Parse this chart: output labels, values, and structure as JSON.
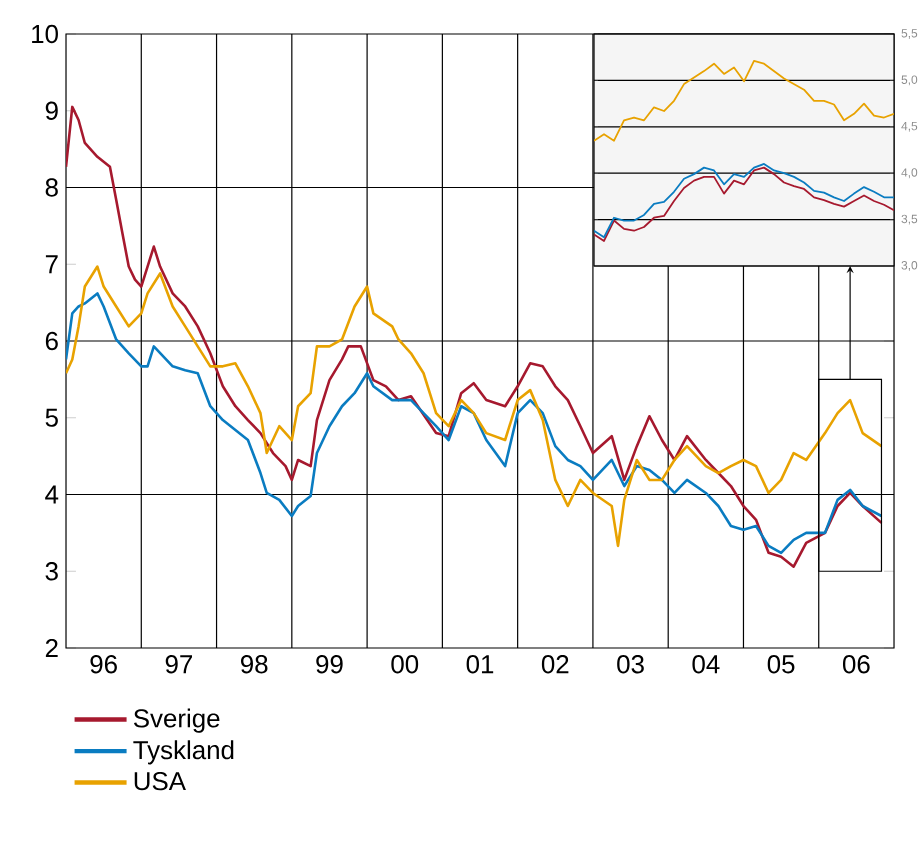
{
  "chart_data": [
    {
      "type": "line",
      "xlim": [
        "1996-01",
        "2007-01"
      ],
      "ylim": [
        2,
        10
      ],
      "yticks": [
        2,
        3,
        4,
        5,
        6,
        7,
        8,
        9,
        10
      ],
      "xticks": [
        {
          "value": "1996-07",
          "label": "96"
        },
        {
          "value": "1997-07",
          "label": "97"
        },
        {
          "value": "1998-07",
          "label": "98"
        },
        {
          "value": "1999-07",
          "label": "99"
        },
        {
          "value": "2000-07",
          "label": "00"
        },
        {
          "value": "2001-07",
          "label": "01"
        },
        {
          "value": "2002-07",
          "label": "02"
        },
        {
          "value": "2003-07",
          "label": "03"
        },
        {
          "value": "2004-07",
          "label": "04"
        },
        {
          "value": "2005-07",
          "label": "05"
        },
        {
          "value": "2006-07",
          "label": "06"
        }
      ],
      "legend": "bottom",
      "ref_lines": [
        {
          "axis": "x",
          "value": "1997-01"
        },
        {
          "axis": "x",
          "value": "1998-01"
        },
        {
          "axis": "x",
          "value": "1999-01"
        },
        {
          "axis": "x",
          "value": "2000-01"
        },
        {
          "axis": "x",
          "value": "2001-01"
        },
        {
          "axis": "x",
          "value": "2002-01"
        },
        {
          "axis": "x",
          "value": "2003-01"
        },
        {
          "axis": "x",
          "value": "2004-01"
        },
        {
          "axis": "x",
          "value": "2005-01"
        },
        {
          "axis": "x",
          "value": "2006-01"
        },
        {
          "axis": "y",
          "value": 4
        },
        {
          "axis": "y",
          "value": 6
        },
        {
          "axis": "y",
          "value": 8
        }
      ],
      "series": [
        {
          "name": "Sverige",
          "color": "#a6192e",
          "x": [
            "1996-01",
            "1996-02",
            "1996-03",
            "1996-04",
            "1996-06",
            "1996-08",
            "1996-09",
            "1996-10",
            "1996-11",
            "1996-12",
            "1997-01",
            "1997-03",
            "1997-04",
            "1997-06",
            "1997-08",
            "1997-10",
            "1997-12",
            "1998-02",
            "1998-04",
            "1998-06",
            "1998-08",
            "1998-10",
            "1998-12",
            "1999-01",
            "1999-02",
            "1999-04",
            "1999-05",
            "1999-07",
            "1999-09",
            "1999-10",
            "1999-12",
            "2000-02",
            "2000-04",
            "2000-06",
            "2000-08",
            "2000-12",
            "2001-02",
            "2001-04",
            "2001-06",
            "2001-08",
            "2001-11",
            "2002-01",
            "2002-03",
            "2002-05",
            "2002-07",
            "2002-09",
            "2002-11",
            "2003-01",
            "2003-04",
            "2003-06",
            "2003-08",
            "2003-10",
            "2003-12",
            "2004-02",
            "2004-04",
            "2004-07",
            "2004-09",
            "2004-11",
            "2005-01",
            "2005-03",
            "2005-05",
            "2005-07",
            "2005-09",
            "2005-11",
            "2006-02",
            "2006-04",
            "2006-06",
            "2006-08",
            "2006-11"
          ],
          "values": [
            8.27,
            9.05,
            8.88,
            8.58,
            8.4,
            8.27,
            7.84,
            7.4,
            6.97,
            6.8,
            6.71,
            7.23,
            6.97,
            6.62,
            6.45,
            6.19,
            5.84,
            5.41,
            5.15,
            4.97,
            4.8,
            4.54,
            4.37,
            4.19,
            4.45,
            4.37,
            4.97,
            5.49,
            5.76,
            5.93,
            5.93,
            5.49,
            5.41,
            5.23,
            5.28,
            4.8,
            4.76,
            5.32,
            5.45,
            5.23,
            5.15,
            5.41,
            5.71,
            5.67,
            5.41,
            5.23,
            4.89,
            4.54,
            4.76,
            4.19,
            4.63,
            5.02,
            4.71,
            4.45,
            4.76,
            4.45,
            4.28,
            4.11,
            3.85,
            3.67,
            3.24,
            3.19,
            3.06,
            3.37,
            3.5,
            3.85,
            4.02,
            3.85,
            3.63
          ]
        },
        {
          "name": "Tyskland",
          "color": "#0a7cc1",
          "x": [
            "1996-01",
            "1996-02",
            "1996-03",
            "1996-04",
            "1996-06",
            "1996-07",
            "1996-09",
            "1996-11",
            "1997-01",
            "1997-02",
            "1997-03",
            "1997-06",
            "1997-08",
            "1997-10",
            "1997-12",
            "1998-02",
            "1998-04",
            "1998-06",
            "1998-08",
            "1998-09",
            "1998-11",
            "1999-01",
            "1999-02",
            "1999-04",
            "1999-05",
            "1999-07",
            "1999-09",
            "1999-11",
            "2000-01",
            "2000-02",
            "2000-05",
            "2000-06",
            "2000-08",
            "2000-12",
            "2001-02",
            "2001-04",
            "2001-06",
            "2001-08",
            "2001-11",
            "2002-01",
            "2002-03",
            "2002-05",
            "2002-07",
            "2002-09",
            "2002-11",
            "2003-01",
            "2003-04",
            "2003-06",
            "2003-08",
            "2003-10",
            "2003-12",
            "2004-02",
            "2004-04",
            "2004-07",
            "2004-09",
            "2004-11",
            "2005-01",
            "2005-03",
            "2005-05",
            "2005-07",
            "2005-09",
            "2005-11",
            "2006-02",
            "2006-04",
            "2006-06",
            "2006-08",
            "2006-11"
          ],
          "values": [
            5.76,
            6.36,
            6.45,
            6.49,
            6.62,
            6.45,
            6.02,
            5.84,
            5.67,
            5.67,
            5.93,
            5.67,
            5.62,
            5.58,
            5.15,
            4.97,
            4.84,
            4.71,
            4.28,
            4.02,
            3.93,
            3.72,
            3.85,
            3.98,
            4.54,
            4.89,
            5.15,
            5.32,
            5.58,
            5.41,
            5.23,
            5.23,
            5.23,
            4.89,
            4.71,
            5.15,
            5.06,
            4.71,
            4.37,
            5.06,
            5.23,
            5.06,
            4.63,
            4.45,
            4.37,
            4.19,
            4.45,
            4.11,
            4.37,
            4.32,
            4.19,
            4.02,
            4.19,
            4.02,
            3.85,
            3.59,
            3.54,
            3.59,
            3.33,
            3.24,
            3.41,
            3.5,
            3.5,
            3.93,
            4.06,
            3.85,
            3.72
          ]
        },
        {
          "name": "USA",
          "color": "#e8a200",
          "x": [
            "1996-01",
            "1996-02",
            "1996-03",
            "1996-04",
            "1996-06",
            "1996-07",
            "1996-09",
            "1996-11",
            "1997-01",
            "1997-02",
            "1997-04",
            "1997-06",
            "1997-08",
            "1997-10",
            "1997-12",
            "1998-02",
            "1998-04",
            "1998-06",
            "1998-08",
            "1998-09",
            "1998-11",
            "1999-01",
            "1999-02",
            "1999-04",
            "1999-05",
            "1999-07",
            "1999-09",
            "1999-11",
            "2000-01",
            "2000-02",
            "2000-05",
            "2000-06",
            "2000-08",
            "2000-10",
            "2000-12",
            "2001-02",
            "2001-04",
            "2001-06",
            "2001-08",
            "2001-11",
            "2002-01",
            "2002-03",
            "2002-05",
            "2002-07",
            "2002-09",
            "2002-11",
            "2003-01",
            "2003-04",
            "2003-05",
            "2003-06",
            "2003-08",
            "2003-10",
            "2003-12",
            "2004-02",
            "2004-04",
            "2004-07",
            "2004-09",
            "2004-11",
            "2005-01",
            "2005-03",
            "2005-05",
            "2005-07",
            "2005-09",
            "2005-11",
            "2006-02",
            "2006-04",
            "2006-06",
            "2006-08",
            "2006-11"
          ],
          "values": [
            5.58,
            5.76,
            6.19,
            6.71,
            6.97,
            6.71,
            6.45,
            6.19,
            6.36,
            6.62,
            6.88,
            6.45,
            6.19,
            5.93,
            5.67,
            5.67,
            5.71,
            5.41,
            5.06,
            4.54,
            4.89,
            4.71,
            5.15,
            5.32,
            5.93,
            5.93,
            6.02,
            6.45,
            6.71,
            6.36,
            6.19,
            6.02,
            5.84,
            5.58,
            5.06,
            4.89,
            5.23,
            5.06,
            4.8,
            4.71,
            5.23,
            5.36,
            4.97,
            4.19,
            3.85,
            4.19,
            4.02,
            3.85,
            3.33,
            3.93,
            4.45,
            4.19,
            4.19,
            4.45,
            4.63,
            4.37,
            4.28,
            4.37,
            4.45,
            4.37,
            4.02,
            4.19,
            4.54,
            4.45,
            4.8,
            5.06,
            5.23,
            4.8,
            4.63
          ]
        }
      ]
    },
    {
      "type": "line",
      "ylim": [
        3,
        5.5
      ],
      "grid": "y",
      "tick_labels": "y",
      "categories": [
        null,
        null,
        null,
        null,
        null,
        null,
        null,
        null,
        null,
        null,
        null,
        null,
        null,
        null,
        null,
        null,
        null,
        null,
        null,
        null,
        null,
        null,
        null,
        null,
        null,
        null,
        null,
        null,
        null,
        null,
        null
      ],
      "yticks": [
        {
          "value": 3,
          "label": "3,0"
        },
        {
          "value": 3.5,
          "label": "3,5"
        },
        {
          "value": 4,
          "label": "4,0"
        },
        {
          "value": 4.5,
          "label": "4,5"
        },
        {
          "value": 5,
          "label": "5,0"
        },
        {
          "value": 5.5,
          "label": "5,5"
        }
      ],
      "series": [
        {
          "color": "#a6192e",
          "values": [
            3.34,
            3.27,
            3.49,
            3.4,
            3.38,
            3.42,
            3.52,
            3.54,
            3.7,
            3.84,
            3.92,
            3.96,
            3.96,
            3.78,
            3.92,
            3.88,
            4.03,
            4.06,
            3.99,
            3.9,
            3.86,
            3.83,
            3.74,
            3.71,
            3.67,
            3.64,
            3.7,
            3.76,
            3.7,
            3.66,
            3.6
          ]
        },
        {
          "color": "#0a7cc1",
          "values": [
            3.38,
            3.31,
            3.52,
            3.49,
            3.49,
            3.55,
            3.67,
            3.69,
            3.8,
            3.94,
            3.99,
            4.06,
            4.03,
            3.88,
            3.99,
            3.96,
            4.06,
            4.1,
            4.03,
            4.0,
            3.96,
            3.9,
            3.81,
            3.79,
            3.74,
            3.7,
            3.78,
            3.85,
            3.8,
            3.74,
            3.74
          ]
        },
        {
          "color": "#e8a200",
          "values": [
            4.35,
            4.42,
            4.35,
            4.57,
            4.6,
            4.57,
            4.71,
            4.67,
            4.78,
            4.96,
            5.03,
            5.1,
            5.18,
            5.07,
            5.14,
            4.99,
            5.21,
            5.18,
            5.1,
            5.02,
            4.96,
            4.9,
            4.78,
            4.78,
            4.74,
            4.57,
            4.64,
            4.75,
            4.62,
            4.6,
            4.64
          ]
        }
      ]
    }
  ]
}
